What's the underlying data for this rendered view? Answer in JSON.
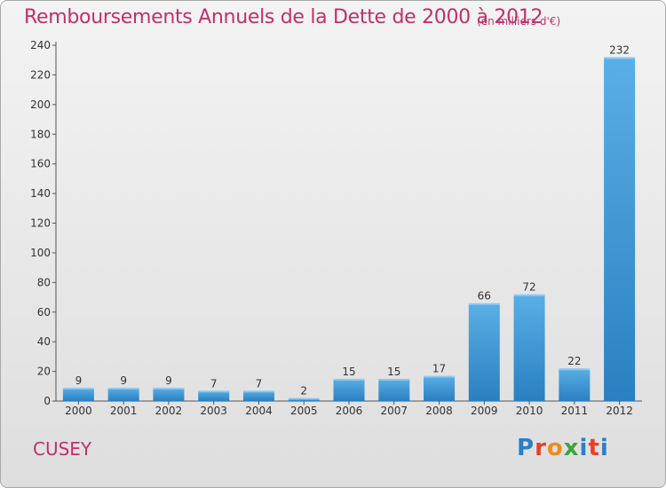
{
  "page": {
    "title": "Remboursements Annuels de la Dette de 2000 à 2012",
    "subtitle": "(en milliers d'€)",
    "commune": "CUSEY",
    "logo": "Proxiti"
  },
  "colors": {
    "text": "#c0306b",
    "bar_light": "#5aafe6",
    "bar_dark": "#2a7fc0",
    "logo_letters": [
      "#2b7fc4",
      "#e8402a",
      "#f08a1e",
      "#3aa63a",
      "#2b7fc4",
      "#e8402a",
      "#2b7fc4"
    ]
  },
  "chart_data": {
    "type": "bar",
    "categories": [
      "2000",
      "2001",
      "2002",
      "2003",
      "2004",
      "2005",
      "2006",
      "2007",
      "2008",
      "2009",
      "2010",
      "2011",
      "2012"
    ],
    "values": [
      9,
      9,
      9,
      7,
      7,
      2,
      15,
      15,
      17,
      66,
      72,
      22,
      232
    ],
    "title": "Remboursements Annuels de la Dette de 2000 à 2012",
    "subtitle": "(en milliers d'€)",
    "ylim": [
      0,
      240
    ],
    "yticks": [
      0,
      20,
      40,
      60,
      80,
      100,
      120,
      140,
      160,
      180,
      200,
      220,
      240
    ],
    "grid": false,
    "data_labels": true
  }
}
